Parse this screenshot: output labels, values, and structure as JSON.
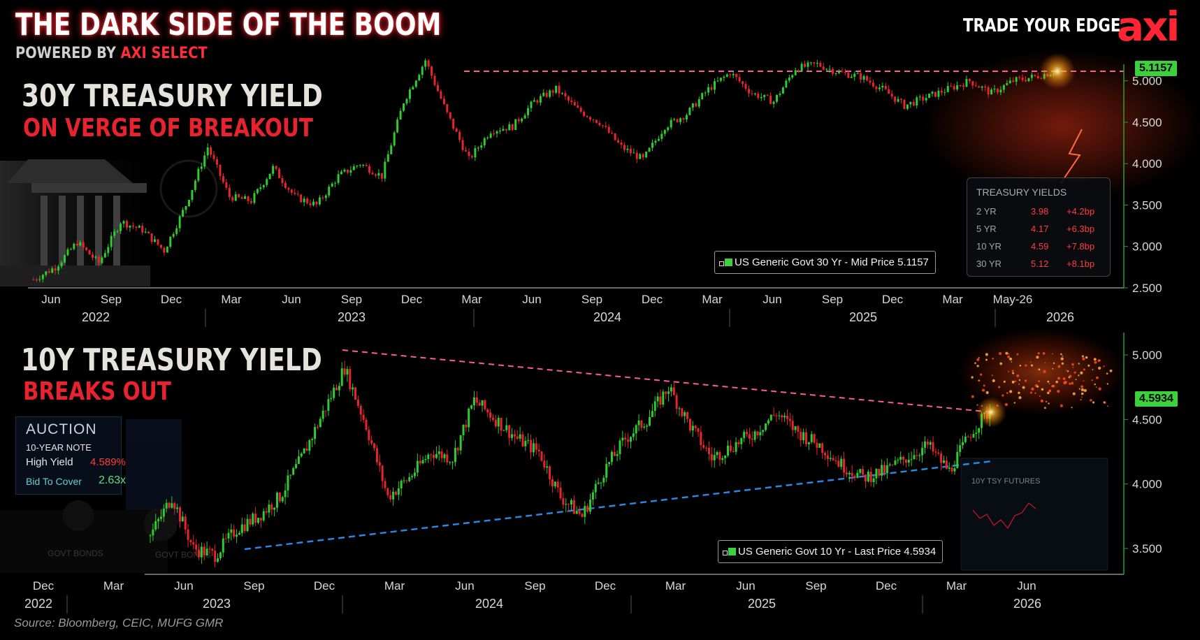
{
  "header": {
    "title": "THE DARK SIDE OF THE BOOM",
    "subtitle_prefix": "POWERED BY ",
    "subtitle_brand": "AXI SELECT",
    "tagline": "TRADE YOUR EDGE",
    "logo": "axi"
  },
  "colors": {
    "up_candle": "#2ecc2e",
    "down_candle": "#e8242c",
    "brand_red": "#ff2533",
    "resistance_line": "#ff5a9a",
    "support_line": "#2a86e0",
    "axis_green": "#2f9e2f",
    "price_tag": "#3bd13b"
  },
  "panel_top": {
    "heading": "30Y TREASURY YIELD",
    "subheading": "ON VERGE OF BREAKOUT",
    "legend": "US Generic Govt 30 Yr - Mid Price 5.1157",
    "last_price": "5.1157",
    "yield_table": {
      "title": "TREASURY YIELDS",
      "rows": [
        {
          "tenor": "2 YR",
          "yield": "3.98",
          "change": "+4.2bp"
        },
        {
          "tenor": "5 YR",
          "yield": "4.17",
          "change": "+6.3bp"
        },
        {
          "tenor": "10 YR",
          "yield": "4.59",
          "change": "+7.8bp"
        },
        {
          "tenor": "30 YR",
          "yield": "5.12",
          "change": "+8.1bp"
        }
      ]
    }
  },
  "panel_bottom": {
    "heading": "10Y TREASURY YIELD",
    "subheading": "BREAKS OUT",
    "legend": "US Generic Govt 10 Yr - Last Price 4.5934",
    "last_price": "4.5934",
    "auction": {
      "title": "AUCTION",
      "note": "10-YEAR NOTE",
      "high_yield_label": "High Yield",
      "high_yield_value": "4.589%",
      "btc_label": "Bid To Cover",
      "btc_value": "2.63x"
    }
  },
  "source": "Source: Bloomberg, CEIC, MUFG GMR",
  "chart_data": [
    {
      "type": "line",
      "title": "30Y TREASURY YIELD",
      "series": [
        {
          "name": "US Generic Govt 30 Yr - Mid Price",
          "x": [
            "2022-05",
            "2022-06",
            "2022-07",
            "2022-08",
            "2022-09",
            "2022-10",
            "2022-11",
            "2022-12",
            "2023-01",
            "2023-02",
            "2023-03",
            "2023-04",
            "2023-05",
            "2023-06",
            "2023-07",
            "2023-08",
            "2023-09",
            "2023-10",
            "2023-11",
            "2023-12",
            "2024-01",
            "2024-02",
            "2024-03",
            "2024-04",
            "2024-05",
            "2024-06",
            "2024-07",
            "2024-08",
            "2024-09",
            "2024-10",
            "2024-11",
            "2024-12",
            "2025-01",
            "2025-02",
            "2025-03",
            "2025-04",
            "2025-05",
            "2025-06",
            "2025-07",
            "2025-08",
            "2025-09",
            "2025-10",
            "2025-11",
            "2025-12",
            "2026-01",
            "2026-02",
            "2026-03",
            "2026-04"
          ],
          "values": [
            2.6,
            2.75,
            3.05,
            2.8,
            3.3,
            3.2,
            2.95,
            3.5,
            4.2,
            3.6,
            3.55,
            3.95,
            3.6,
            3.5,
            3.85,
            4.0,
            3.85,
            4.75,
            5.25,
            4.6,
            4.05,
            4.4,
            4.45,
            4.75,
            4.9,
            4.65,
            4.5,
            4.2,
            4.05,
            4.45,
            4.6,
            4.9,
            5.1,
            4.85,
            4.75,
            5.15,
            5.2,
            5.1,
            5.05,
            4.9,
            4.7,
            4.8,
            4.9,
            5.0,
            4.85,
            5.0,
            5.05,
            5.12
          ]
        }
      ],
      "x_ticks": [
        "Jun",
        "Sep",
        "Dec",
        "Mar",
        "Jun",
        "Sep",
        "Dec",
        "Mar",
        "Jun",
        "Sep",
        "Dec",
        "Mar",
        "Jun",
        "Sep",
        "Dec",
        "Mar",
        "May-26"
      ],
      "year_labels": [
        "2022",
        "2023",
        "2024",
        "2025",
        "2026"
      ],
      "y_ticks": [
        "2.500",
        "3.000",
        "3.500",
        "4.000",
        "4.500",
        "5.000"
      ],
      "ylim": [
        2.5,
        5.2
      ],
      "resistance": 5.1157,
      "last_price": 5.1157
    },
    {
      "type": "line",
      "title": "10Y TREASURY YIELD",
      "series": [
        {
          "name": "US Generic Govt 10 Yr - Last Price",
          "x": [
            "2023-01",
            "2023-02",
            "2023-03",
            "2023-04",
            "2023-05",
            "2023-06",
            "2023-07",
            "2023-08",
            "2023-09",
            "2023-10",
            "2023-11",
            "2023-12",
            "2024-01",
            "2024-02",
            "2024-03",
            "2024-04",
            "2024-05",
            "2024-06",
            "2024-07",
            "2024-08",
            "2024-09",
            "2024-10",
            "2024-11",
            "2024-12",
            "2025-01",
            "2025-02",
            "2025-03",
            "2025-04",
            "2025-05",
            "2025-06",
            "2025-07",
            "2025-08",
            "2025-09",
            "2025-10",
            "2025-11",
            "2025-12",
            "2026-01",
            "2026-02",
            "2026-03",
            "2026-04"
          ],
          "values": [
            3.6,
            3.9,
            3.5,
            3.45,
            3.65,
            3.75,
            3.9,
            4.2,
            4.55,
            4.9,
            4.45,
            3.9,
            4.05,
            4.25,
            4.2,
            4.65,
            4.5,
            4.35,
            4.25,
            3.9,
            3.75,
            4.1,
            4.35,
            4.5,
            4.75,
            4.45,
            4.2,
            4.3,
            4.4,
            4.55,
            4.4,
            4.3,
            4.15,
            4.05,
            4.1,
            4.2,
            4.3,
            4.1,
            4.4,
            4.59
          ]
        }
      ],
      "x_ticks": [
        "Dec",
        "Mar",
        "Jun",
        "Sep",
        "Dec",
        "Mar",
        "Jun",
        "Sep",
        "Dec",
        "Mar",
        "Jun",
        "Sep",
        "Dec",
        "Mar",
        "Jun"
      ],
      "year_labels": [
        "2022",
        "2023",
        "2024",
        "2025",
        "2026"
      ],
      "y_ticks": [
        "3.500",
        "4.000",
        "4.500",
        "5.000"
      ],
      "ylim": [
        3.3,
        5.0
      ],
      "last_price": 4.5934
    }
  ]
}
